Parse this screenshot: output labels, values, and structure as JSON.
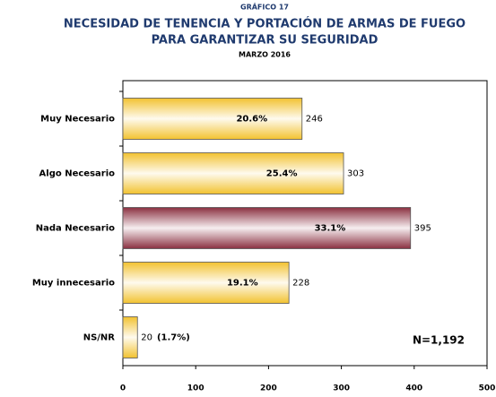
{
  "chart_data": {
    "type": "barh",
    "kicker": "GRÁFICO 17",
    "title": [
      "NECESIDAD DE TENENCIA Y PORTACIÓN DE ARMAS DE FUEGO",
      "PARA GARANTIZAR SU SEGURIDAD"
    ],
    "subtitle": "MARZO 2016",
    "categories": [
      "Muy Necesario",
      "Algo Necesario",
      "Nada Necesario",
      "Muy innecesario",
      "NS/NR"
    ],
    "values": [
      246,
      303,
      395,
      228,
      20
    ],
    "percents": [
      20.6,
      25.4,
      33.1,
      19.1,
      1.7
    ],
    "percent_labels": [
      "20.6%",
      "25.4%",
      "33.1%",
      "19.1%",
      "(1.7%)"
    ],
    "colors": [
      "#f2c230",
      "#f2c230",
      "#8a3040",
      "#f2c230",
      "#f2c230"
    ],
    "xlim": [
      0,
      500
    ],
    "xticks": [
      0,
      100,
      200,
      300,
      400,
      500
    ],
    "annotation": "N=1,192"
  }
}
